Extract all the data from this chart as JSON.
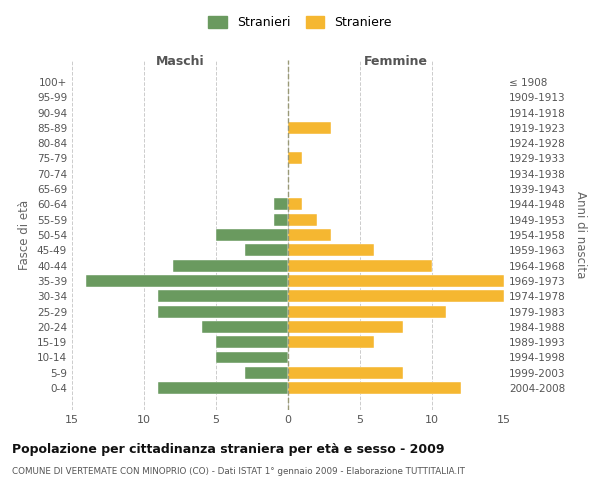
{
  "age_groups": [
    "100+",
    "95-99",
    "90-94",
    "85-89",
    "80-84",
    "75-79",
    "70-74",
    "65-69",
    "60-64",
    "55-59",
    "50-54",
    "45-49",
    "40-44",
    "35-39",
    "30-34",
    "25-29",
    "20-24",
    "15-19",
    "10-14",
    "5-9",
    "0-4"
  ],
  "birth_years": [
    "≤ 1908",
    "1909-1913",
    "1914-1918",
    "1919-1923",
    "1924-1928",
    "1929-1933",
    "1934-1938",
    "1939-1943",
    "1944-1948",
    "1949-1953",
    "1954-1958",
    "1959-1963",
    "1964-1968",
    "1969-1973",
    "1974-1978",
    "1979-1983",
    "1984-1988",
    "1989-1993",
    "1994-1998",
    "1999-2003",
    "2004-2008"
  ],
  "males": [
    0,
    0,
    0,
    0,
    0,
    0,
    0,
    0,
    1,
    1,
    5,
    3,
    8,
    14,
    9,
    9,
    6,
    5,
    5,
    3,
    9
  ],
  "females": [
    0,
    0,
    0,
    3,
    0,
    1,
    0,
    0,
    1,
    2,
    3,
    6,
    10,
    15,
    15,
    11,
    8,
    6,
    0,
    8,
    12
  ],
  "male_color": "#6a9a5f",
  "female_color": "#f5b731",
  "background_color": "#ffffff",
  "grid_color": "#cccccc",
  "title": "Popolazione per cittadinanza straniera per età e sesso - 2009",
  "subtitle": "COMUNE DI VERTEMATE CON MINOPRIO (CO) - Dati ISTAT 1° gennaio 2009 - Elaborazione TUTTITALIA.IT",
  "ylabel_left": "Fasce di età",
  "ylabel_right": "Anni di nascita",
  "xlabel_left": "Maschi",
  "xlabel_right": "Femmine",
  "legend_males": "Stranieri",
  "legend_females": "Straniere",
  "xlim": 15
}
